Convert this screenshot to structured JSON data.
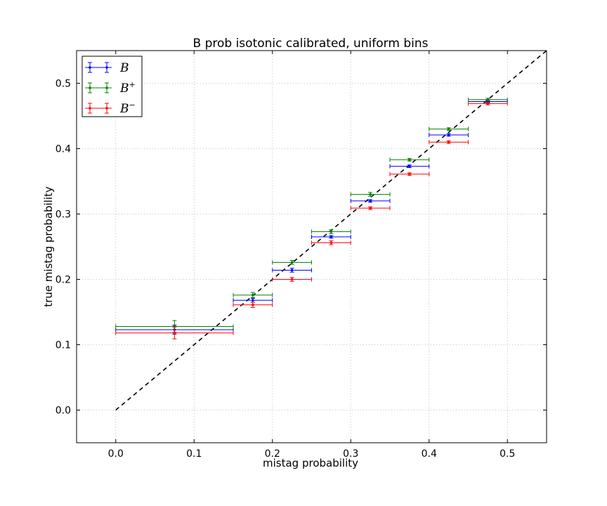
{
  "chart_data": {
    "type": "scatter",
    "title": "B prob isotonic calibrated, uniform bins",
    "xlabel": "mistag probability",
    "ylabel": "true mistag probability",
    "xlim": [
      -0.05,
      0.55
    ],
    "ylim": [
      -0.05,
      0.55
    ],
    "xticks": [
      0.0,
      0.1,
      0.2,
      0.3,
      0.4,
      0.5
    ],
    "yticks": [
      0.0,
      0.1,
      0.2,
      0.3,
      0.4,
      0.5
    ],
    "xtick_labels": [
      "0.0",
      "0.1",
      "0.2",
      "0.3",
      "0.4",
      "0.5"
    ],
    "ytick_labels": [
      "0.0",
      "0.1",
      "0.2",
      "0.3",
      "0.4",
      "0.5"
    ],
    "grid": true,
    "legend_position": "top-left",
    "reference_line": {
      "style": "dashed",
      "color": "#000000",
      "from": [
        0,
        0
      ],
      "to": [
        0.55,
        0.55
      ]
    },
    "series": [
      {
        "name": "B",
        "color": "#0000ff",
        "points": [
          {
            "x": 0.075,
            "xmin": 0.0,
            "xmax": 0.15,
            "y": 0.123,
            "yerr": 0.007
          },
          {
            "x": 0.175,
            "xmin": 0.15,
            "xmax": 0.2,
            "y": 0.168,
            "yerr": 0.003
          },
          {
            "x": 0.225,
            "xmin": 0.2,
            "xmax": 0.25,
            "y": 0.214,
            "yerr": 0.003
          },
          {
            "x": 0.275,
            "xmin": 0.25,
            "xmax": 0.3,
            "y": 0.265,
            "yerr": 0.002
          },
          {
            "x": 0.325,
            "xmin": 0.3,
            "xmax": 0.35,
            "y": 0.32,
            "yerr": 0.002
          },
          {
            "x": 0.375,
            "xmin": 0.35,
            "xmax": 0.4,
            "y": 0.373,
            "yerr": 0.002
          },
          {
            "x": 0.425,
            "xmin": 0.4,
            "xmax": 0.45,
            "y": 0.421,
            "yerr": 0.002
          },
          {
            "x": 0.475,
            "xmin": 0.45,
            "xmax": 0.5,
            "y": 0.472,
            "yerr": 0.002
          }
        ]
      },
      {
        "name": "B+",
        "color": "#008000",
        "points": [
          {
            "x": 0.075,
            "xmin": 0.0,
            "xmax": 0.15,
            "y": 0.128,
            "yerr": 0.009
          },
          {
            "x": 0.175,
            "xmin": 0.15,
            "xmax": 0.2,
            "y": 0.176,
            "yerr": 0.004
          },
          {
            "x": 0.225,
            "xmin": 0.2,
            "xmax": 0.25,
            "y": 0.226,
            "yerr": 0.003
          },
          {
            "x": 0.275,
            "xmin": 0.25,
            "xmax": 0.3,
            "y": 0.273,
            "yerr": 0.003
          },
          {
            "x": 0.325,
            "xmin": 0.3,
            "xmax": 0.35,
            "y": 0.33,
            "yerr": 0.003
          },
          {
            "x": 0.375,
            "xmin": 0.35,
            "xmax": 0.4,
            "y": 0.383,
            "yerr": 0.002
          },
          {
            "x": 0.425,
            "xmin": 0.4,
            "xmax": 0.45,
            "y": 0.43,
            "yerr": 0.002
          },
          {
            "x": 0.475,
            "xmin": 0.45,
            "xmax": 0.5,
            "y": 0.475,
            "yerr": 0.002
          }
        ]
      },
      {
        "name": "B−",
        "color": "#ff0000",
        "points": [
          {
            "x": 0.075,
            "xmin": 0.0,
            "xmax": 0.15,
            "y": 0.118,
            "yerr": 0.009
          },
          {
            "x": 0.175,
            "xmin": 0.15,
            "xmax": 0.2,
            "y": 0.161,
            "yerr": 0.004
          },
          {
            "x": 0.225,
            "xmin": 0.2,
            "xmax": 0.25,
            "y": 0.2,
            "yerr": 0.003
          },
          {
            "x": 0.275,
            "xmin": 0.25,
            "xmax": 0.3,
            "y": 0.256,
            "yerr": 0.003
          },
          {
            "x": 0.325,
            "xmin": 0.3,
            "xmax": 0.35,
            "y": 0.309,
            "yerr": 0.002
          },
          {
            "x": 0.375,
            "xmin": 0.35,
            "xmax": 0.4,
            "y": 0.361,
            "yerr": 0.002
          },
          {
            "x": 0.425,
            "xmin": 0.4,
            "xmax": 0.45,
            "y": 0.41,
            "yerr": 0.002
          },
          {
            "x": 0.475,
            "xmin": 0.45,
            "xmax": 0.5,
            "y": 0.469,
            "yerr": 0.002
          }
        ]
      }
    ],
    "legend": [
      {
        "base": "B",
        "sup": ""
      },
      {
        "base": "B",
        "sup": "+"
      },
      {
        "base": "B",
        "sup": "−"
      }
    ]
  }
}
